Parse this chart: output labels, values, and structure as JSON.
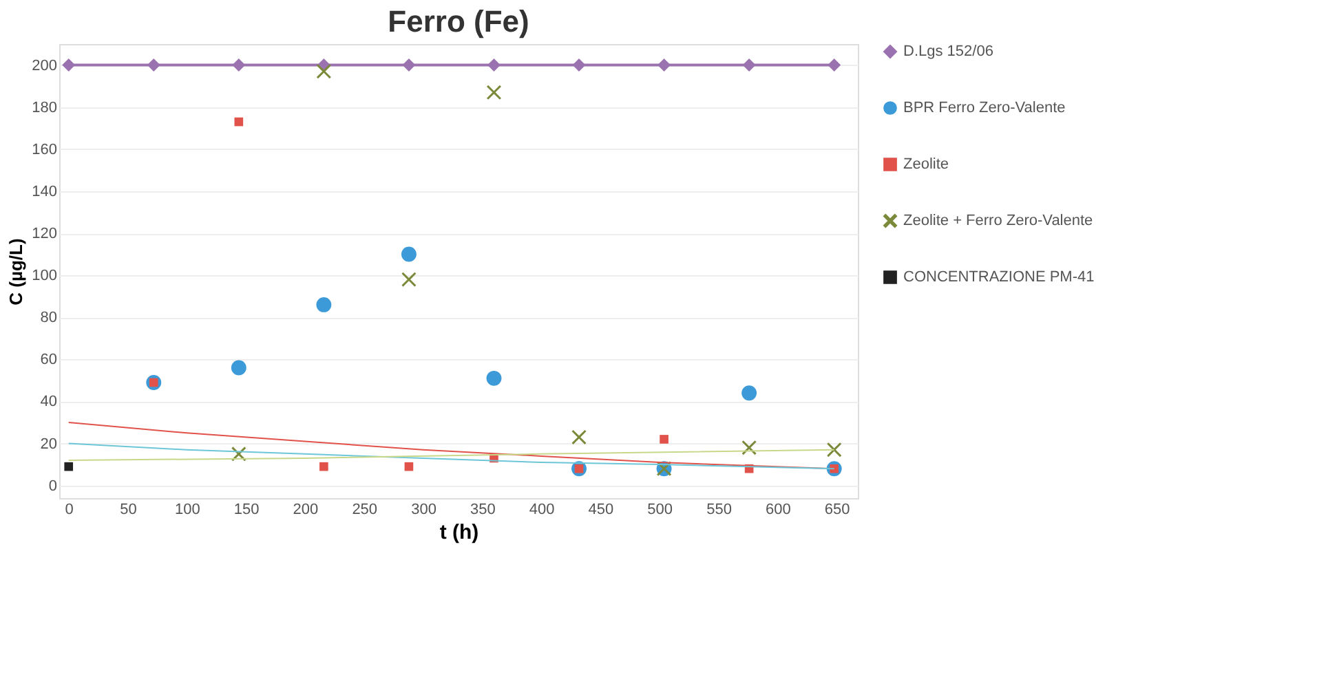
{
  "chart_data": {
    "type": "scatter",
    "title": "Ferro (Fe)",
    "xlabel": "t (h)",
    "ylabel": "C  (µg/L)",
    "xlim": [
      -8,
      668
    ],
    "xticks": [
      0,
      50,
      100,
      150,
      200,
      250,
      300,
      350,
      400,
      450,
      500,
      550,
      600,
      650
    ],
    "ylim": [
      -6,
      210
    ],
    "yticks": [
      0,
      20,
      40,
      60,
      80,
      100,
      120,
      140,
      160,
      180,
      200
    ],
    "grid": "y",
    "legend": "right",
    "series": [
      {
        "name": "D.Lgs 152/06",
        "type": "line",
        "marker": "diamond",
        "color": "#9b72b0",
        "x": [
          0,
          72,
          144,
          216,
          288,
          360,
          432,
          504,
          576,
          648
        ],
        "values": [
          200,
          200,
          200,
          200,
          200,
          200,
          200,
          200,
          200,
          200
        ]
      },
      {
        "name": "BPR Ferro Zero-Valente",
        "marker": "circle",
        "color": "#3c9ad8",
        "x": [
          72,
          144,
          216,
          288,
          360,
          432,
          504,
          576,
          648
        ],
        "values": [
          49,
          56,
          86,
          110,
          51,
          8,
          8,
          44,
          8
        ]
      },
      {
        "name": "Zeolite",
        "marker": "square",
        "color": "#e0524a",
        "x": [
          72,
          144,
          216,
          288,
          360,
          432,
          504,
          576,
          648
        ],
        "values": [
          49,
          173,
          9,
          9,
          13,
          8,
          22,
          8,
          8
        ]
      },
      {
        "name": "Zeolite + Ferro Zero-Valente",
        "marker": "cross",
        "color": "#7a8a3a",
        "x": [
          144,
          216,
          288,
          360,
          432,
          504,
          576,
          648
        ],
        "values": [
          15,
          197,
          98,
          187,
          23,
          8,
          18,
          17
        ]
      },
      {
        "name": "CONCENTRAZIONE PM-41",
        "marker": "square",
        "color": "#222222",
        "x": [
          0
        ],
        "values": [
          9
        ]
      },
      {
        "type": "line",
        "marker": "none",
        "color": "#e0524a",
        "x": [
          0,
          100,
          200,
          300,
          400,
          500,
          648
        ],
        "values": [
          30,
          25,
          21,
          17,
          14,
          11,
          8
        ]
      },
      {
        "type": "line",
        "marker": "none",
        "color": "#6cc6d8",
        "x": [
          0,
          100,
          200,
          300,
          400,
          500,
          648
        ],
        "values": [
          20,
          17,
          15,
          13,
          11,
          10,
          8
        ]
      },
      {
        "type": "line",
        "marker": "none",
        "color": "#c8d88a",
        "x": [
          0,
          200,
          400,
          648
        ],
        "values": [
          12,
          13,
          15,
          17
        ]
      }
    ]
  }
}
